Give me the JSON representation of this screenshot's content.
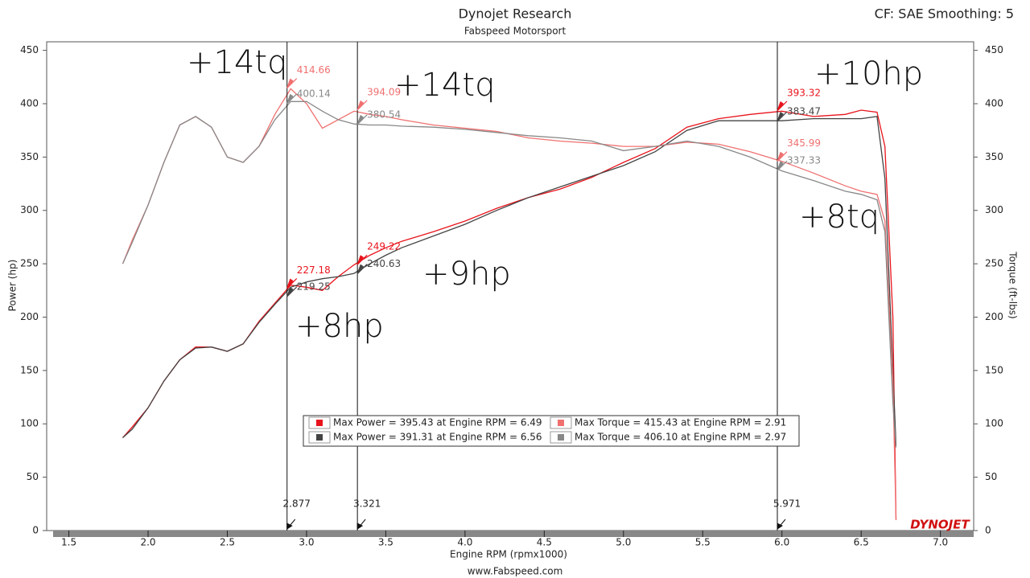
{
  "chart_data": {
    "type": "line",
    "title": "Dynojet Research",
    "subtitle": "Fabspeed Motorsport",
    "corner_text": "CF: SAE Smoothing: 5",
    "x_label": "Engine RPM (rpmx1000)",
    "y_label": "Power (hp)",
    "y2_label": "Torque (ft-lbs)",
    "footer": "www.Fabspeed.com",
    "logo": "DYNOJET",
    "xlim": [
      1.36,
      7.21
    ],
    "ylim": [
      0,
      458
    ],
    "y2lim": [
      0,
      458
    ],
    "xticks": [
      {
        "value": 1.5,
        "label": "1.5"
      },
      {
        "value": 2,
        "label": "2.0"
      },
      {
        "value": 2.5,
        "label": "2.5"
      },
      {
        "value": 3,
        "label": "3.0"
      },
      {
        "value": 3.5,
        "label": "3.5"
      },
      {
        "value": 4,
        "label": "4.0"
      },
      {
        "value": 4.5,
        "label": "4.5"
      },
      {
        "value": 5,
        "label": "5.0"
      },
      {
        "value": 5.5,
        "label": "5.5"
      },
      {
        "value": 6,
        "label": "6.0"
      },
      {
        "value": 6.5,
        "label": "6.5"
      },
      {
        "value": 7,
        "label": "7.0"
      }
    ],
    "yticks": [
      0,
      50,
      100,
      150,
      200,
      250,
      300,
      350,
      400,
      450
    ],
    "y2ticks": [
      0,
      50,
      100,
      150,
      200,
      250,
      300,
      350,
      400,
      450
    ],
    "x": [
      1.84,
      1.9,
      2.0,
      2.1,
      2.2,
      2.3,
      2.4,
      2.5,
      2.6,
      2.7,
      2.8,
      2.9,
      3.0,
      3.1,
      3.2,
      3.3,
      3.4,
      3.5,
      3.6,
      3.8,
      4.0,
      4.2,
      4.4,
      4.6,
      4.8,
      5.0,
      5.2,
      5.4,
      5.6,
      5.8,
      6.0,
      6.2,
      6.4,
      6.5,
      6.6,
      6.65,
      6.7,
      6.72
    ],
    "series": [
      {
        "name": "Max Power = 395.43 at Engine RPM = 6.49",
        "color": "#e8141c",
        "values": [
          87,
          97,
          115,
          140,
          160,
          172,
          172,
          168,
          175,
          196,
          213,
          230,
          228,
          225,
          238,
          249,
          258,
          265,
          271,
          280,
          290,
          302,
          312,
          320,
          331,
          345,
          358,
          378,
          386,
          390,
          393,
          388,
          390,
          394,
          392,
          360,
          200,
          10
        ]
      },
      {
        "name": "Max Power = 391.31 at Engine RPM = 6.56",
        "color": "#444444",
        "values": [
          87,
          95,
          115,
          140,
          160,
          171,
          172,
          168,
          175,
          195,
          212,
          228,
          233,
          236,
          238,
          241,
          250,
          258,
          265,
          276,
          287,
          300,
          312,
          322,
          332,
          342,
          355,
          375,
          384,
          384,
          384,
          386,
          386,
          386,
          388,
          330,
          150,
          80
        ]
      },
      {
        "name": "Max Torque = 415.43 at Engine RPM = 2.91",
        "color": "#f07070",
        "axis": "y2",
        "values": [
          250,
          272,
          305,
          345,
          380,
          388,
          378,
          350,
          345,
          360,
          390,
          414,
          400,
          377,
          385,
          393,
          390,
          388,
          385,
          380,
          377,
          374,
          368,
          365,
          363,
          360,
          360,
          364,
          362,
          355,
          346,
          335,
          323,
          318,
          315,
          290,
          140,
          10
        ]
      },
      {
        "name": "Max Torque = 406.10 at Engine RPM = 2.97",
        "color": "#888888",
        "axis": "y2",
        "values": [
          250,
          270,
          305,
          345,
          380,
          388,
          378,
          350,
          345,
          360,
          385,
          402,
          402,
          393,
          385,
          381,
          380,
          380,
          379,
          378,
          376,
          373,
          370,
          368,
          365,
          356,
          360,
          365,
          360,
          350,
          337,
          328,
          318,
          315,
          310,
          280,
          120,
          78
        ]
      }
    ],
    "cursors": [
      {
        "x": 2.877,
        "values": [
          227.18,
          219.25,
          414.66,
          400.14
        ]
      },
      {
        "x": 3.321,
        "values": [
          249.22,
          240.63,
          394.09,
          380.54
        ]
      },
      {
        "x": 5.971,
        "values": [
          393.32,
          383.47,
          345.99,
          337.33
        ]
      }
    ],
    "annotations": [
      "+14tq",
      "+14tq",
      "+10hp",
      "+8tq",
      "+9hp",
      "+8hp"
    ]
  }
}
